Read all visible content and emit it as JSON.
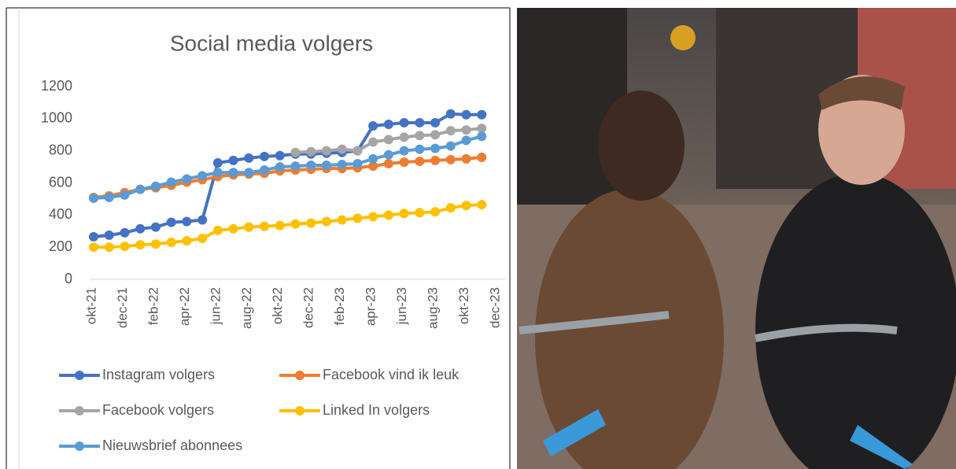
{
  "chart_data": {
    "type": "line",
    "title": "Social media volgers",
    "categories": [
      "okt-21",
      null,
      "dec-21",
      null,
      "feb-22",
      null,
      "apr-22",
      null,
      "jun-22",
      null,
      "aug-22",
      null,
      "okt-22",
      null,
      "dec-22",
      null,
      "feb-23",
      null,
      "apr-23",
      null,
      "jun-23",
      null,
      "aug-23",
      null,
      "okt-23",
      null,
      "dec-23"
    ],
    "ylim": [
      0,
      1200
    ],
    "yticks": [
      0,
      200,
      400,
      600,
      800,
      1000,
      1200
    ],
    "grid": false,
    "series": [
      {
        "name": "Instagram volgers",
        "color": "#4472c4",
        "values": [
          265,
          275,
          290,
          315,
          325,
          355,
          360,
          370,
          725,
          740,
          755,
          765,
          770,
          780,
          780,
          785,
          790,
          800,
          955,
          965,
          975,
          975,
          975,
          1030,
          1025,
          1025,
          null
        ]
      },
      {
        "name": "Facebook vind ik leuk",
        "color": "#ed7d31",
        "values": [
          510,
          520,
          540,
          560,
          570,
          585,
          605,
          620,
          640,
          650,
          655,
          660,
          675,
          680,
          685,
          690,
          690,
          695,
          705,
          720,
          730,
          735,
          740,
          745,
          750,
          760,
          null
        ]
      },
      {
        "name": "Facebook volgers",
        "color": "#a5a5a5",
        "values": [
          null,
          null,
          null,
          null,
          null,
          null,
          null,
          null,
          null,
          null,
          null,
          null,
          null,
          790,
          795,
          800,
          810,
          800,
          855,
          870,
          885,
          895,
          900,
          925,
          930,
          940,
          null
        ]
      },
      {
        "name": "Linked In volgers",
        "color": "#ffc000",
        "values": [
          200,
          200,
          205,
          215,
          220,
          230,
          240,
          255,
          305,
          315,
          325,
          330,
          335,
          345,
          350,
          360,
          370,
          380,
          390,
          400,
          410,
          415,
          420,
          445,
          460,
          465,
          null
        ]
      },
      {
        "name": "Nieuwsbrief abonnees",
        "color": "#5b9bd5",
        "values": [
          505,
          510,
          525,
          560,
          580,
          605,
          625,
          645,
          665,
          665,
          665,
          680,
          700,
          705,
          710,
          710,
          715,
          720,
          750,
          775,
          800,
          810,
          815,
          830,
          865,
          890,
          null
        ]
      }
    ]
  }
}
